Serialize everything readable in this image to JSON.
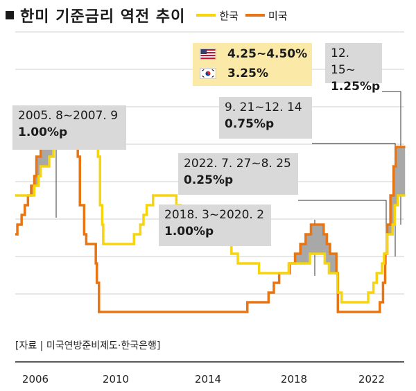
{
  "title": "한미 기준금리 역전 추이",
  "legend": [
    {
      "name": "한국",
      "color": "#f6d40e"
    },
    {
      "name": "미국",
      "color": "#e87511"
    }
  ],
  "current": {
    "us_rate": "4.25~4.50%",
    "kr_rate": "3.25%"
  },
  "annotations": [
    {
      "period": "2005. 8~2007. 9",
      "gap": "1.00%p"
    },
    {
      "period": "2018. 3~2020. 2",
      "gap": "1.00%p"
    },
    {
      "period": "2022. 7. 27~8. 25",
      "gap": "0.25%p"
    },
    {
      "period": "9. 21~12. 14",
      "gap": "0.75%p"
    },
    {
      "period": "12. 15~",
      "gap": "1.25%p"
    }
  ],
  "source": "[자료 | 미국연방준비제도·한국은행]",
  "chart_data": {
    "type": "line",
    "x_ticks": [
      "2006",
      "2010",
      "2014",
      "2018",
      "2022"
    ],
    "grid": true,
    "series": [
      {
        "name": "한국",
        "color": "#f6d40e",
        "points": [
          [
            2005.0,
            3.25
          ],
          [
            2005.8,
            3.25
          ],
          [
            2005.9,
            3.5
          ],
          [
            2006.1,
            3.75
          ],
          [
            2006.2,
            4.0
          ],
          [
            2006.6,
            4.25
          ],
          [
            2006.8,
            4.5
          ],
          [
            2007.5,
            4.75
          ],
          [
            2007.7,
            5.0
          ],
          [
            2008.6,
            5.25
          ],
          [
            2008.8,
            5.0
          ],
          [
            2008.9,
            4.25
          ],
          [
            2009.0,
            3.0
          ],
          [
            2009.1,
            2.5
          ],
          [
            2009.15,
            2.0
          ],
          [
            2010.6,
            2.25
          ],
          [
            2010.9,
            2.5
          ],
          [
            2011.05,
            2.75
          ],
          [
            2011.2,
            3.0
          ],
          [
            2011.5,
            3.25
          ],
          [
            2012.6,
            3.0
          ],
          [
            2012.8,
            2.75
          ],
          [
            2013.4,
            2.5
          ],
          [
            2014.65,
            2.25
          ],
          [
            2014.85,
            2.0
          ],
          [
            2015.2,
            1.75
          ],
          [
            2015.5,
            1.5
          ],
          [
            2016.5,
            1.25
          ],
          [
            2017.9,
            1.5
          ],
          [
            2018.9,
            1.75
          ],
          [
            2019.6,
            1.5
          ],
          [
            2019.8,
            1.25
          ],
          [
            2020.2,
            0.75
          ],
          [
            2020.4,
            0.5
          ],
          [
            2021.65,
            0.75
          ],
          [
            2021.9,
            1.0
          ],
          [
            2022.05,
            1.25
          ],
          [
            2022.3,
            1.5
          ],
          [
            2022.4,
            1.75
          ],
          [
            2022.55,
            2.25
          ],
          [
            2022.8,
            2.5
          ],
          [
            2022.9,
            3.0
          ],
          [
            2023.05,
            3.25
          ],
          [
            2023.4,
            3.25
          ]
        ]
      },
      {
        "name": "미국",
        "color": "#e87511",
        "points": [
          [
            2005.0,
            2.25
          ],
          [
            2005.1,
            2.5
          ],
          [
            2005.3,
            2.75
          ],
          [
            2005.45,
            3.0
          ],
          [
            2005.6,
            3.25
          ],
          [
            2005.75,
            3.5
          ],
          [
            2005.9,
            3.75
          ],
          [
            2006.0,
            4.25
          ],
          [
            2006.2,
            4.5
          ],
          [
            2006.35,
            4.75
          ],
          [
            2006.5,
            5.0
          ],
          [
            2006.55,
            5.25
          ],
          [
            2007.7,
            4.75
          ],
          [
            2007.8,
            4.5
          ],
          [
            2007.95,
            4.25
          ],
          [
            2008.05,
            3.0
          ],
          [
            2008.25,
            2.25
          ],
          [
            2008.35,
            2.0
          ],
          [
            2008.8,
            1.5
          ],
          [
            2008.85,
            1.0
          ],
          [
            2008.95,
            0.25
          ],
          [
            2015.95,
            0.5
          ],
          [
            2016.95,
            0.75
          ],
          [
            2017.2,
            1.0
          ],
          [
            2017.45,
            1.25
          ],
          [
            2017.95,
            1.5
          ],
          [
            2018.2,
            1.75
          ],
          [
            2018.45,
            2.0
          ],
          [
            2018.7,
            2.25
          ],
          [
            2018.95,
            2.5
          ],
          [
            2019.55,
            2.25
          ],
          [
            2019.7,
            2.0
          ],
          [
            2019.85,
            1.75
          ],
          [
            2020.15,
            1.25
          ],
          [
            2020.22,
            0.25
          ],
          [
            2022.2,
            0.5
          ],
          [
            2022.35,
            1.0
          ],
          [
            2022.45,
            1.75
          ],
          [
            2022.55,
            2.5
          ],
          [
            2022.7,
            3.25
          ],
          [
            2022.85,
            4.0
          ],
          [
            2022.95,
            4.5
          ],
          [
            2023.4,
            4.5
          ]
        ]
      }
    ]
  }
}
